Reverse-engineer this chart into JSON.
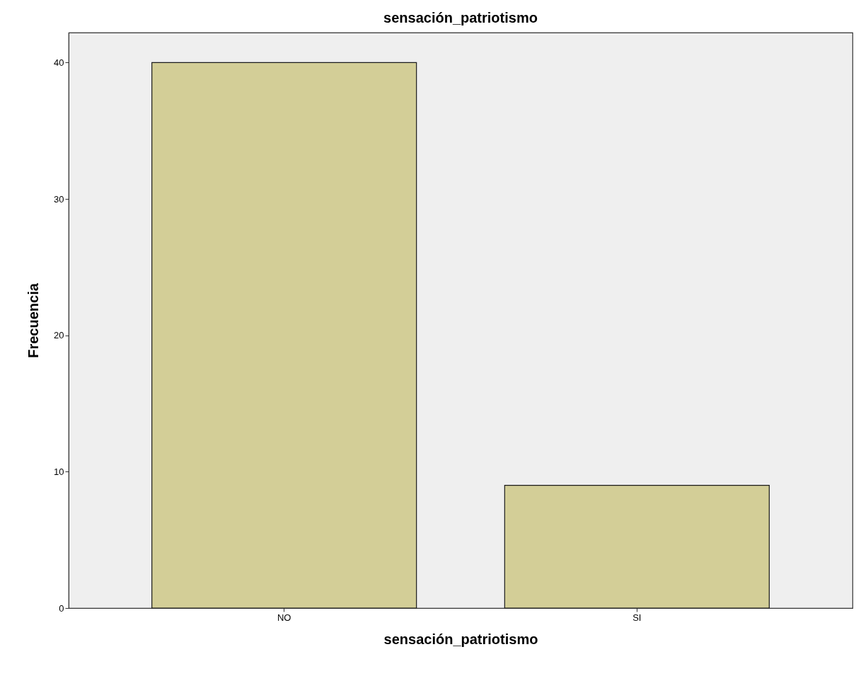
{
  "chart_data": {
    "type": "bar",
    "title": "sensación_patriotismo",
    "xlabel": "sensación_patriotismo",
    "ylabel": "Frecuencia",
    "categories": [
      "NO",
      "SI"
    ],
    "values": [
      40,
      9
    ],
    "color": "#d3ce97",
    "ylim": [
      0,
      42.2
    ],
    "yticks": [
      0,
      10,
      20,
      30,
      40
    ],
    "grid": false
  }
}
